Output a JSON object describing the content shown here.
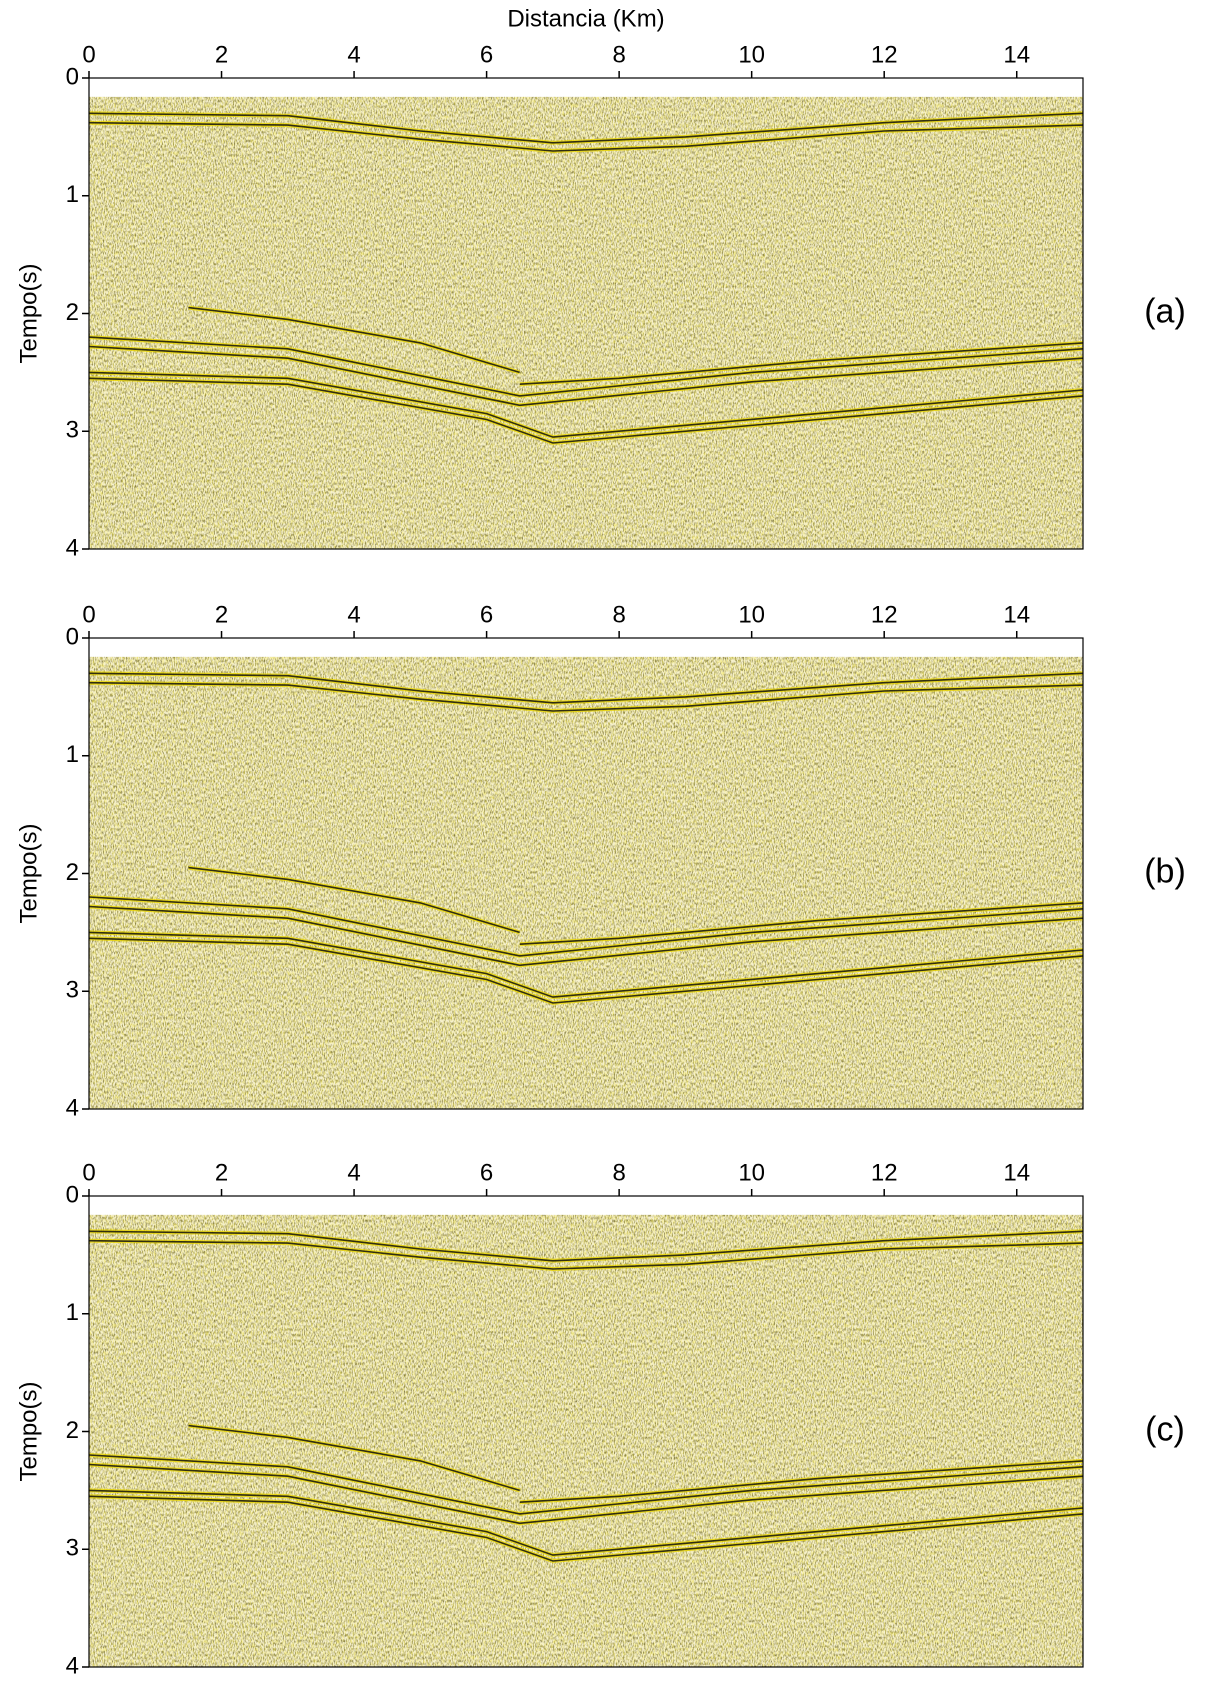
{
  "chart_data": [
    {
      "type": "seismic",
      "xlabel": "Distancia (Km)",
      "ylabel": "Tempo(s)",
      "label": "(a)",
      "xlim": [
        0,
        15
      ],
      "xticks": [
        0,
        2,
        4,
        6,
        8,
        10,
        12,
        14
      ],
      "ylim": [
        0,
        4
      ],
      "yticks": [
        0,
        1,
        2,
        3,
        4
      ],
      "y_inverted": true
    },
    {
      "type": "seismic",
      "ylabel": "Tempo(s)",
      "label": "(b)",
      "xlim": [
        0,
        15
      ],
      "xticks": [
        0,
        2,
        4,
        6,
        8,
        10,
        12,
        14
      ],
      "ylim": [
        0,
        4
      ],
      "yticks": [
        0,
        1,
        2,
        3,
        4
      ],
      "y_inverted": true
    },
    {
      "type": "seismic",
      "ylabel": "Tempo(s)",
      "label": "(c)",
      "xlim": [
        0,
        15
      ],
      "xticks": [
        0,
        2,
        4,
        6,
        8,
        10,
        12,
        14
      ],
      "ylim": [
        0,
        4
      ],
      "yticks": [
        0,
        1,
        2,
        3,
        4
      ],
      "y_inverted": true
    }
  ]
}
